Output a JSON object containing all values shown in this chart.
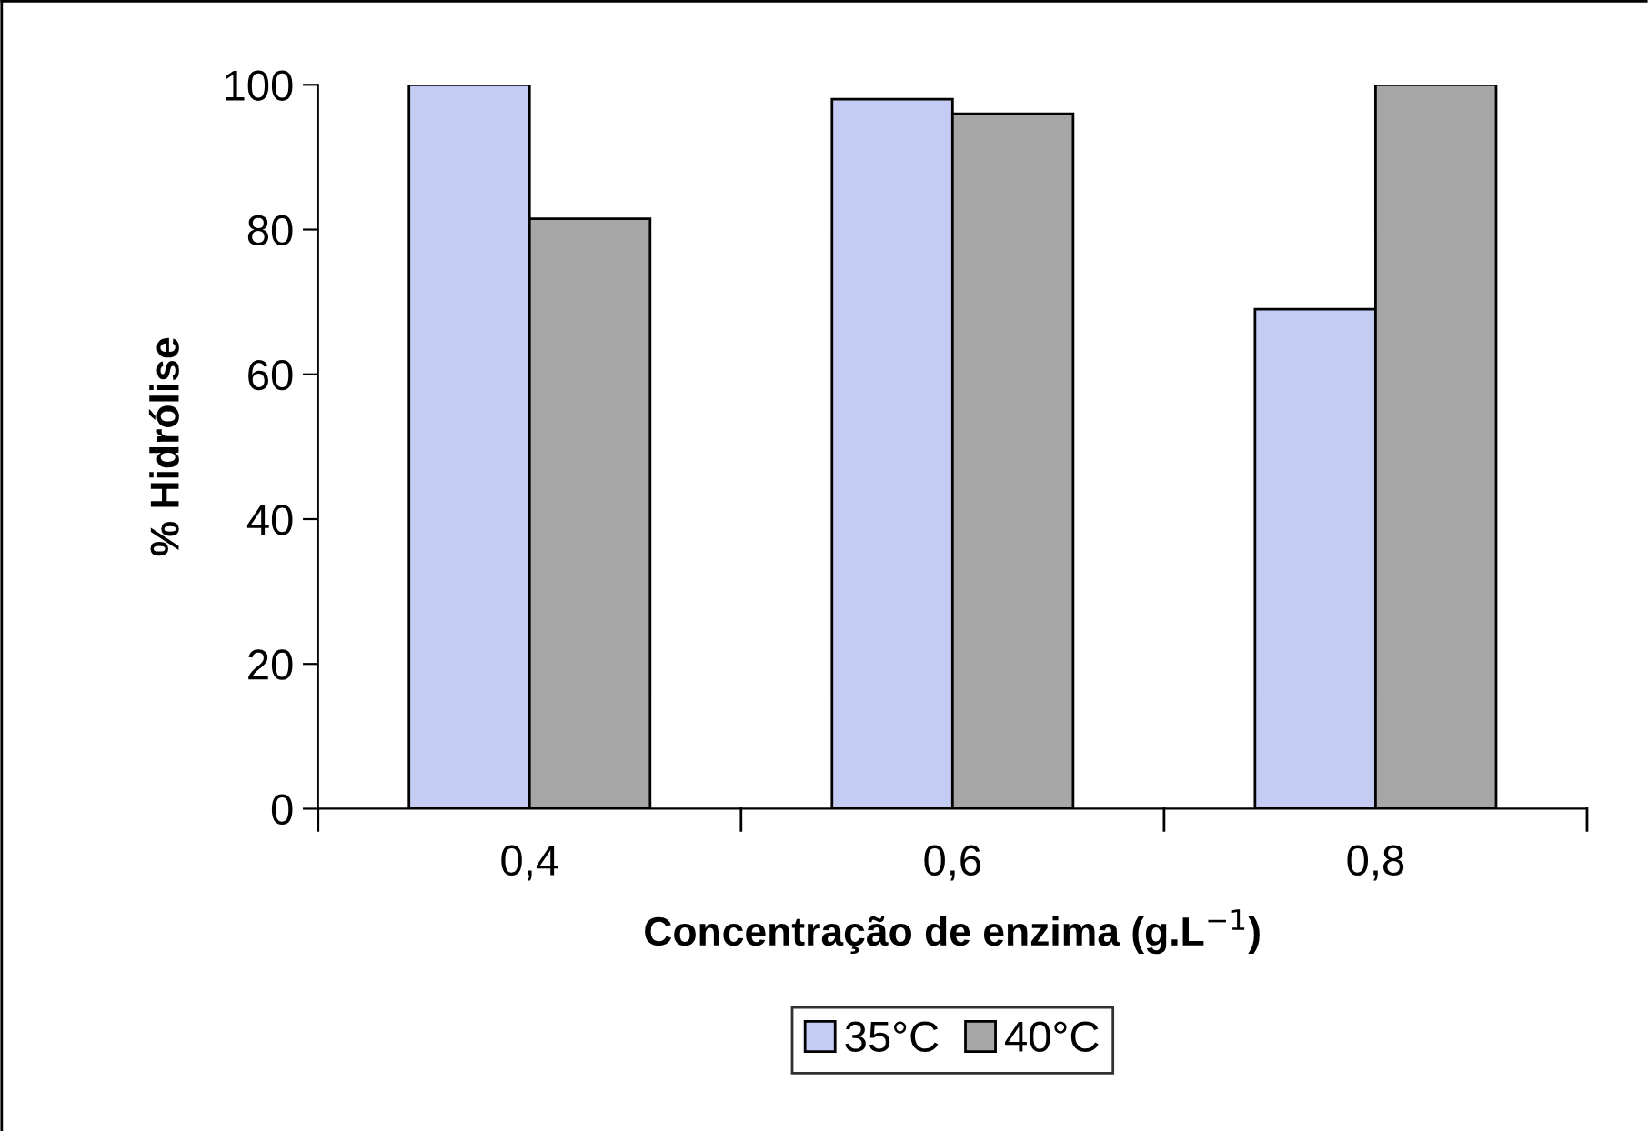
{
  "chart_data": {
    "type": "bar",
    "xlabel": "Concentração de enzima (g.L$^{−1}$)",
    "ylabel": "% Hidrólise",
    "categories": [
      "0,4",
      "0,6",
      "0,8"
    ],
    "series": [
      {
        "name": "35°C",
        "color": "#c4ccf4",
        "values": [
          100,
          98,
          69
        ]
      },
      {
        "name": "40°C",
        "color": "#a6a6a6",
        "values": [
          81.5,
          96,
          100
        ]
      }
    ],
    "ylim": [
      0,
      100
    ],
    "yticks": [
      0,
      20,
      40,
      60,
      80,
      100
    ],
    "grid": false,
    "legend": "bottom"
  }
}
